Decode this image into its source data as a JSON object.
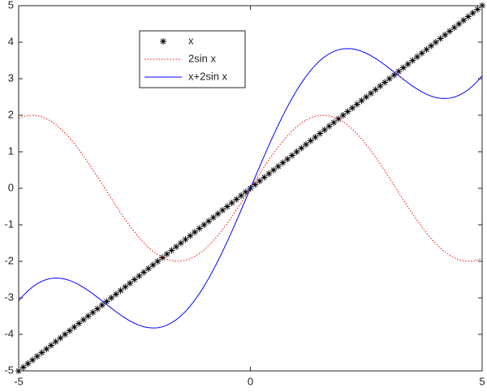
{
  "chart_data": {
    "type": "line",
    "x": [
      -5,
      -4.9,
      -4.8,
      -4.7,
      -4.6,
      -4.5,
      -4.4,
      -4.3,
      -4.2,
      -4.1,
      -4,
      -3.9,
      -3.8,
      -3.7,
      -3.6,
      -3.5,
      -3.4,
      -3.3,
      -3.2,
      -3.1,
      -3,
      -2.9,
      -2.8,
      -2.7,
      -2.6,
      -2.5,
      -2.4,
      -2.3,
      -2.2,
      -2.1,
      -2,
      -1.9,
      -1.8,
      -1.7,
      -1.6,
      -1.5,
      -1.4,
      -1.3,
      -1.2,
      -1.1,
      -1,
      -0.9,
      -0.8,
      -0.7,
      -0.6,
      -0.5,
      -0.4,
      -0.3,
      -0.2,
      -0.1,
      0,
      0.1,
      0.2,
      0.3,
      0.4,
      0.5,
      0.6,
      0.7,
      0.8,
      0.9,
      1,
      1.1,
      1.2,
      1.3,
      1.4,
      1.5,
      1.6,
      1.7,
      1.8,
      1.9,
      2,
      2.1,
      2.2,
      2.3,
      2.4,
      2.5,
      2.6,
      2.7,
      2.8,
      2.9,
      3,
      3.1,
      3.2,
      3.3,
      3.4,
      3.5,
      3.6,
      3.7,
      3.8,
      3.9,
      4,
      4.1,
      4.2,
      4.3,
      4.4,
      4.5,
      4.6,
      4.7,
      4.8,
      4.9,
      5
    ],
    "series": [
      {
        "name": "x",
        "color": "#000000",
        "marker": "*",
        "linestyle": "none",
        "values": [
          -5,
          -4.9,
          -4.8,
          -4.7,
          -4.6,
          -4.5,
          -4.4,
          -4.3,
          -4.2,
          -4.1,
          -4,
          -3.9,
          -3.8,
          -3.7,
          -3.6,
          -3.5,
          -3.4,
          -3.3,
          -3.2,
          -3.1,
          -3,
          -2.9,
          -2.8,
          -2.7,
          -2.6,
          -2.5,
          -2.4,
          -2.3,
          -2.2,
          -2.1,
          -2,
          -1.9,
          -1.8,
          -1.7,
          -1.6,
          -1.5,
          -1.4,
          -1.3,
          -1.2,
          -1.1,
          -1,
          -0.9,
          -0.8,
          -0.7,
          -0.6,
          -0.5,
          -0.4,
          -0.3,
          -0.2,
          -0.1,
          0,
          0.1,
          0.2,
          0.3,
          0.4,
          0.5,
          0.6,
          0.7,
          0.8,
          0.9,
          1,
          1.1,
          1.2,
          1.3,
          1.4,
          1.5,
          1.6,
          1.7,
          1.8,
          1.9,
          2,
          2.1,
          2.2,
          2.3,
          2.4,
          2.5,
          2.6,
          2.7,
          2.8,
          2.9,
          3,
          3.1,
          3.2,
          3.3,
          3.4,
          3.5,
          3.6,
          3.7,
          3.8,
          3.9,
          4,
          4.1,
          4.2,
          4.3,
          4.4,
          4.5,
          4.6,
          4.7,
          4.8,
          4.9,
          5
        ]
      },
      {
        "name": "2sin x",
        "color": "#ff0000",
        "marker": "none",
        "linestyle": "dotted",
        "values": [
          1.918,
          1.965,
          1.992,
          2.0,
          1.987,
          1.955,
          1.903,
          1.832,
          1.743,
          1.637,
          1.514,
          1.376,
          1.224,
          1.06,
          0.885,
          0.702,
          0.511,
          0.315,
          0.117,
          -0.083,
          -0.282,
          -0.478,
          -0.67,
          -0.855,
          -1.031,
          -1.197,
          -1.351,
          -1.491,
          -1.617,
          -1.726,
          -1.819,
          -1.893,
          -1.948,
          -1.983,
          -1.999,
          -1.995,
          -1.971,
          -1.927,
          -1.864,
          -1.782,
          -1.683,
          -1.567,
          -1.435,
          -1.288,
          -1.129,
          -0.959,
          -0.779,
          -0.591,
          -0.397,
          -0.2,
          0,
          0.2,
          0.397,
          0.591,
          0.779,
          0.959,
          1.129,
          1.288,
          1.435,
          1.567,
          1.683,
          1.782,
          1.864,
          1.927,
          1.971,
          1.995,
          1.999,
          1.983,
          1.948,
          1.893,
          1.819,
          1.726,
          1.617,
          1.491,
          1.351,
          1.197,
          1.031,
          0.855,
          0.67,
          0.478,
          0.282,
          0.083,
          -0.117,
          -0.315,
          -0.511,
          -0.702,
          -0.885,
          -1.06,
          -1.224,
          -1.376,
          -1.514,
          -1.637,
          -1.743,
          -1.832,
          -1.903,
          -1.955,
          -1.987,
          -2.0,
          -1.992,
          -1.965,
          -1.918
        ]
      },
      {
        "name": "x+2sin x",
        "color": "#0000ff",
        "marker": "none",
        "linestyle": "solid",
        "values": [
          -3.082,
          -2.935,
          -2.808,
          -2.7,
          -2.613,
          -2.545,
          -2.497,
          -2.468,
          -2.457,
          -2.463,
          -2.486,
          -2.524,
          -2.576,
          -2.64,
          -2.715,
          -2.798,
          -2.889,
          -2.985,
          -3.083,
          -3.183,
          -3.282,
          -3.378,
          -3.47,
          -3.555,
          -3.631,
          -3.697,
          -3.751,
          -3.791,
          -3.817,
          -3.826,
          -3.819,
          -3.793,
          -3.748,
          -3.683,
          -3.599,
          -3.495,
          -3.371,
          -3.227,
          -3.064,
          -2.882,
          -2.683,
          -2.467,
          -2.235,
          -1.988,
          -1.729,
          -1.459,
          -1.179,
          -0.891,
          -0.597,
          -0.3,
          0,
          0.3,
          0.597,
          0.891,
          1.179,
          1.459,
          1.729,
          1.988,
          2.235,
          2.467,
          2.683,
          2.882,
          3.064,
          3.227,
          3.371,
          3.495,
          3.599,
          3.683,
          3.748,
          3.793,
          3.819,
          3.826,
          3.817,
          3.791,
          3.751,
          3.697,
          3.631,
          3.555,
          3.47,
          3.378,
          3.282,
          3.183,
          3.083,
          2.985,
          2.889,
          2.798,
          2.715,
          2.64,
          2.576,
          2.524,
          2.486,
          2.463,
          2.457,
          2.468,
          2.497,
          2.545,
          2.613,
          2.7,
          2.808,
          2.935,
          3.082
        ]
      }
    ],
    "xlim": [
      -5,
      5
    ],
    "xticks": [
      -5,
      0,
      5
    ],
    "ylim": [
      -5,
      5
    ],
    "yticks": [
      -5,
      -4,
      -3,
      -2,
      -1,
      0,
      1,
      2,
      3,
      4,
      5
    ],
    "grid": false,
    "legend": "northwest"
  }
}
